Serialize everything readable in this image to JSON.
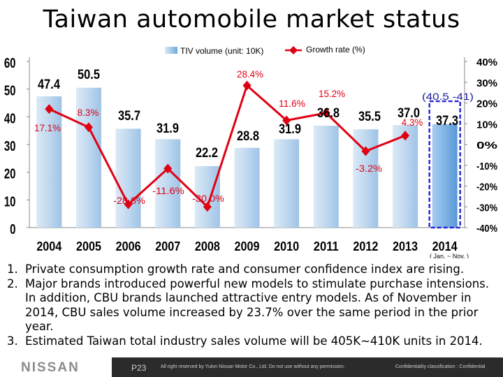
{
  "title": "Taiwan automobile market status",
  "chart_data": {
    "type": "bar+line",
    "categories": [
      "2004",
      "2005",
      "2006",
      "2007",
      "2008",
      "2009",
      "2010",
      "2011",
      "2012",
      "2013",
      "2014"
    ],
    "series": [
      {
        "name": "TIV volume (unit: 10K)",
        "type": "bar",
        "axis": "left",
        "values": [
          47.4,
          50.5,
          35.7,
          31.9,
          22.2,
          28.8,
          31.9,
          36.8,
          35.5,
          37.0,
          37.3
        ],
        "labels": [
          "47.4",
          "50.5",
          "35.7",
          "31.9",
          "22.2",
          "28.8",
          "31.9",
          "36.8",
          "35.5",
          "37.0",
          "37.3"
        ]
      },
      {
        "name": "Growth rate (%)",
        "type": "line",
        "axis": "right",
        "values": [
          17.1,
          8.3,
          -28.8,
          -11.6,
          -30.0,
          28.4,
          11.6,
          15.2,
          -3.2,
          4.3,
          null
        ],
        "labels": [
          "17.1%",
          "8.3%",
          "-28.8%",
          "-11.6%",
          "-30.0%",
          "28.4%",
          "11.6%",
          "15.2%",
          "-3.2%",
          "4.3%",
          ""
        ]
      }
    ],
    "left_axis": {
      "ylim": [
        0,
        60
      ],
      "ticks": [
        "0",
        "10",
        "20",
        "30",
        "40",
        "50",
        "60"
      ]
    },
    "right_axis": {
      "ylim": [
        -40,
        40
      ],
      "ticks": [
        "-40%",
        "-30%",
        "-20%",
        "-10%",
        "0%",
        "10%",
        "20%",
        "30%",
        "40%"
      ]
    },
    "annotation": "(40.5 -41)",
    "x_note": "( Jan. ~ Nov. )",
    "legend_placement": "top-center",
    "colors": {
      "bar": "#bcd6ec",
      "bar_highlight": "#6fa8dc",
      "line": "#e00012",
      "dashed_box": "#2a2ad6"
    }
  },
  "bullets": [
    {
      "num": "1.",
      "text": "Private consumption growth rate and consumer confidence index are rising."
    },
    {
      "num": "2.",
      "text": "Major brands introduced powerful new models to stimulate purchase intensions. In addition, CBU brands launched attractive entry models. As of November in 2014, CBU sales volume increased by 23.7% over the same period in the prior year."
    },
    {
      "num": "3.",
      "text": "Estimated Taiwan total industry sales volume will be 405K~410K units in 2014."
    }
  ],
  "footer": {
    "logo": "NISSAN",
    "page": "P23",
    "copyright": "All right reserved by Yulon Nissan Motor Co., Ltd. Do not use without any permission.",
    "confidentiality": "Confidentiality classification : Confidential"
  }
}
